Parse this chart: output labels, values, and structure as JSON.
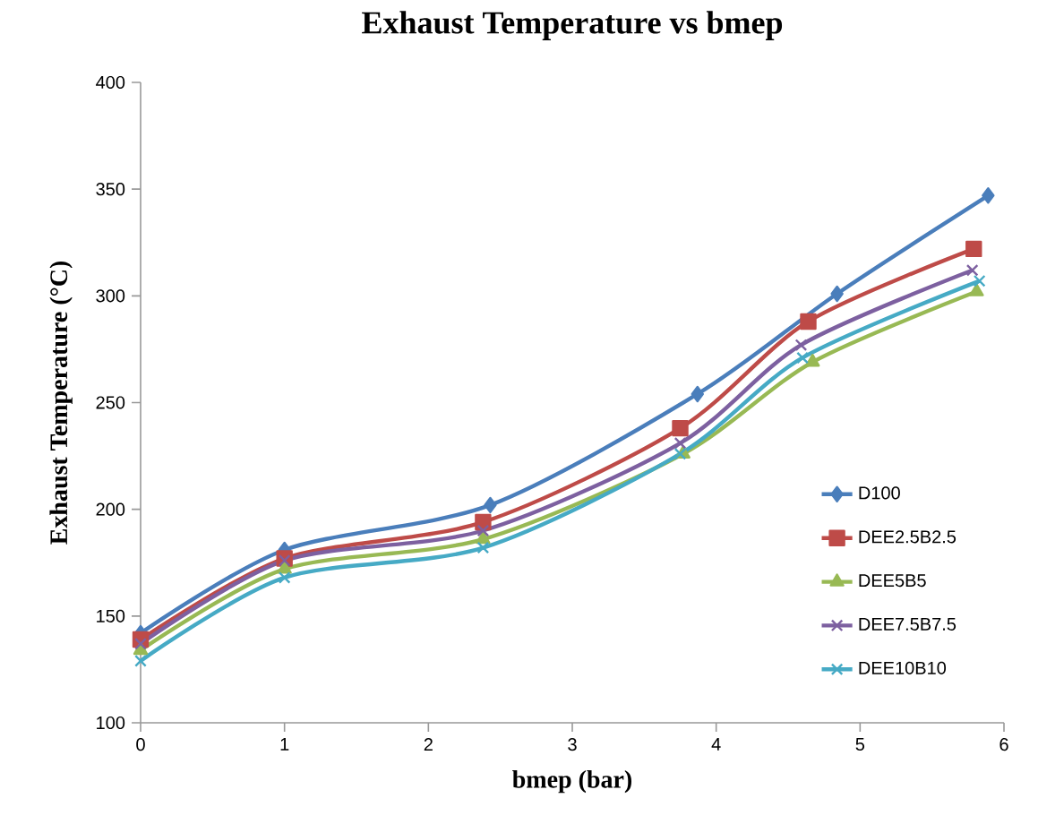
{
  "chart_data": {
    "type": "line",
    "title": "Exhaust Temperature vs bmep",
    "xlabel": "bmep (bar)",
    "ylabel": "Exhaust Temperature (°C)",
    "xlim": [
      0,
      6
    ],
    "ylim": [
      100,
      400
    ],
    "xticks": [
      0,
      1,
      2,
      3,
      4,
      5,
      6
    ],
    "yticks": [
      100,
      150,
      200,
      250,
      300,
      350,
      400
    ],
    "grid": false,
    "legend": "bottom right",
    "line_style": "solid",
    "series": [
      {
        "name": "D100",
        "color": "#4a7ebb",
        "marker": "diamond",
        "x": [
          0,
          1,
          2.43,
          3.87,
          4.84,
          5.89
        ],
        "values": [
          142,
          181,
          202,
          254,
          301,
          347
        ]
      },
      {
        "name": "DEE2.5B2.5",
        "color": "#be4b48",
        "marker": "square",
        "x": [
          0,
          1,
          2.38,
          3.75,
          4.64,
          5.79
        ],
        "values": [
          139,
          177,
          194,
          238,
          288,
          322
        ]
      },
      {
        "name": "DEE5B5",
        "color": "#98b954",
        "marker": "triangle",
        "x": [
          0,
          1,
          2.38,
          3.77,
          4.67,
          5.81
        ],
        "values": [
          134,
          172,
          186,
          226,
          269,
          302
        ]
      },
      {
        "name": "DEE7.5B7.5",
        "color": "#7d60a0",
        "marker": "cross",
        "x": [
          0,
          1,
          2.38,
          3.75,
          4.59,
          5.78
        ],
        "values": [
          137,
          176,
          190,
          231,
          277,
          312
        ]
      },
      {
        "name": "DEE10B10",
        "color": "#46aac5",
        "marker": "cross",
        "x": [
          0,
          1,
          2.38,
          3.75,
          4.6,
          5.83
        ],
        "values": [
          129,
          168,
          182,
          226,
          271,
          307
        ]
      }
    ]
  }
}
